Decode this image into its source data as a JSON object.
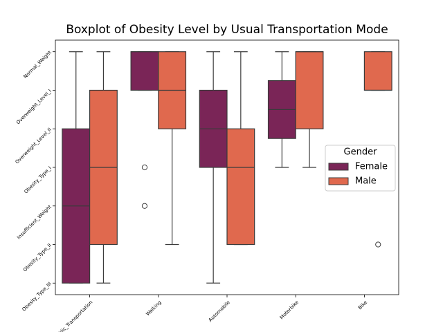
{
  "chart_data": {
    "type": "boxplot",
    "title": "Boxplot of Obesity Level by Usual Transportation Mode",
    "categories": [
      "Public_Transportation",
      "Walking",
      "Automobile",
      "Motorbike",
      "Bike"
    ],
    "ylim": [
      -0.3,
      6.3
    ],
    "yticks": [
      {
        "value": 0,
        "label": "Obesity_Type_III"
      },
      {
        "value": 1,
        "label": "Obesity_Type_II"
      },
      {
        "value": 2,
        "label": "Insufficient_Weight"
      },
      {
        "value": 3,
        "label": "Obesity_Type_I"
      },
      {
        "value": 4,
        "label": "Overweight_Level_II"
      },
      {
        "value": 5,
        "label": "Overweight_Level_I"
      },
      {
        "value": 6,
        "label": "Normal_Weight"
      }
    ],
    "legend_title": "Gender",
    "legend_position": "center right",
    "series": [
      {
        "name": "Female",
        "color": "#7a2557",
        "boxes": [
          {
            "whislo": 0,
            "q1": 0,
            "med": 2,
            "q3": 4,
            "whishi": 6,
            "fliers": []
          },
          {
            "whislo": 5,
            "q1": 5,
            "med": 6,
            "q3": 6,
            "whishi": 6,
            "fliers": [
              3,
              2
            ]
          },
          {
            "whislo": 0,
            "q1": 3,
            "med": 4,
            "q3": 5,
            "whishi": 6,
            "fliers": []
          },
          {
            "whislo": 3,
            "q1": 3.75,
            "med": 4.5,
            "q3": 5.25,
            "whishi": 6,
            "fliers": []
          },
          null
        ]
      },
      {
        "name": "Male",
        "color": "#e0694e",
        "boxes": [
          {
            "whislo": 0,
            "q1": 1,
            "med": 3,
            "q3": 5,
            "whishi": 6,
            "fliers": []
          },
          {
            "whislo": 1,
            "q1": 4,
            "med": 5,
            "q3": 6,
            "whishi": 6,
            "fliers": []
          },
          {
            "whislo": 1,
            "q1": 1,
            "med": 3,
            "q3": 4,
            "whishi": 6,
            "fliers": []
          },
          {
            "whislo": 3,
            "q1": 4,
            "med": 6,
            "q3": 6,
            "whishi": 6,
            "fliers": []
          },
          {
            "whislo": 5,
            "q1": 5,
            "med": 5,
            "q3": 6,
            "whishi": 6,
            "fliers": [
              1
            ]
          }
        ]
      }
    ]
  }
}
